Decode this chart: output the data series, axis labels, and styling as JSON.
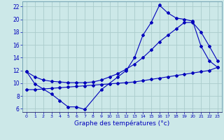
{
  "xlabel": "Graphe des températures (°c)",
  "background_color": "#cce8e8",
  "grid_color": "#aacccc",
  "line_color": "#0000bb",
  "xlim": [
    -0.5,
    23.5
  ],
  "ylim": [
    5.5,
    22.8
  ],
  "yticks": [
    6,
    8,
    10,
    12,
    14,
    16,
    18,
    20,
    22
  ],
  "xticks": [
    0,
    1,
    2,
    3,
    4,
    5,
    6,
    7,
    8,
    9,
    10,
    11,
    12,
    13,
    14,
    15,
    16,
    17,
    18,
    19,
    20,
    21,
    22,
    23
  ],
  "main_x": [
    0,
    1,
    3,
    4,
    5,
    6,
    7,
    9,
    11,
    12,
    13,
    14,
    15,
    16,
    17,
    18,
    19,
    20,
    21,
    22,
    23
  ],
  "main_y": [
    11.8,
    9.9,
    8.3,
    7.3,
    6.3,
    6.3,
    5.9,
    9.0,
    11.0,
    12.0,
    14.0,
    17.5,
    19.5,
    22.2,
    21.0,
    20.2,
    20.0,
    19.7,
    15.8,
    13.5,
    12.5
  ],
  "trend_low_x": [
    0,
    1,
    2,
    3,
    4,
    5,
    6,
    7,
    8,
    9,
    10,
    11,
    12,
    13,
    14,
    15,
    16,
    17,
    18,
    19,
    20,
    21,
    22,
    23
  ],
  "trend_low_y": [
    9.0,
    9.0,
    9.1,
    9.2,
    9.3,
    9.4,
    9.5,
    9.6,
    9.7,
    9.8,
    9.9,
    10.0,
    10.1,
    10.2,
    10.4,
    10.6,
    10.8,
    11.0,
    11.2,
    11.4,
    11.6,
    11.8,
    12.0,
    12.5
  ],
  "trend_high_x": [
    0,
    1,
    2,
    3,
    4,
    5,
    6,
    7,
    8,
    9,
    10,
    11,
    12,
    13,
    14,
    15,
    16,
    17,
    18,
    19,
    20,
    21,
    22,
    23
  ],
  "trend_high_y": [
    11.8,
    11.0,
    10.5,
    10.3,
    10.2,
    10.1,
    10.1,
    10.1,
    10.2,
    10.5,
    11.0,
    11.5,
    12.2,
    13.0,
    14.0,
    15.2,
    16.5,
    17.5,
    18.5,
    19.5,
    19.5,
    18.0,
    15.8,
    13.5
  ]
}
